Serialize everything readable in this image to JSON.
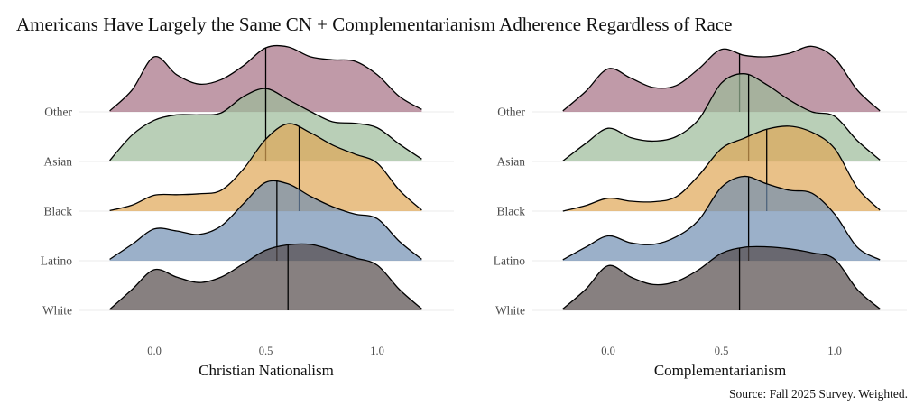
{
  "title": "Americans Have Largely the Same CN + Complementarianism Adherence Regardless of Race",
  "caption": "Source: Fall 2025 Survey. Weighted.",
  "chart_data": [
    {
      "type": "ridgeline",
      "xlabel": "Christian Nationalism",
      "xticks": [
        0.0,
        0.5,
        1.0
      ],
      "xtick_labels": [
        "0.0",
        "0.5",
        "1.0"
      ],
      "xlim": [
        -0.3,
        1.3
      ],
      "grid": "horizontal",
      "x": [
        -0.2,
        -0.1,
        0,
        0.1,
        0.2,
        0.3,
        0.4,
        0.5,
        0.6,
        0.7,
        0.8,
        0.9,
        1.0,
        1.1,
        1.2
      ],
      "series": [
        {
          "name": "Other",
          "median": 0.5,
          "density": [
            0.02,
            0.44,
            1.11,
            0.75,
            0.56,
            0.65,
            0.93,
            1.29,
            1.31,
            1.11,
            1.05,
            1.02,
            0.75,
            0.31,
            0.05
          ]
        },
        {
          "name": "Asian",
          "median": 0.5,
          "density": [
            0.02,
            0.53,
            0.83,
            0.94,
            0.94,
            0.98,
            1.31,
            1.47,
            1.25,
            1.01,
            0.8,
            0.77,
            0.68,
            0.35,
            0.05
          ]
        },
        {
          "name": "Black",
          "median": 0.65,
          "density": [
            0.01,
            0.12,
            0.32,
            0.33,
            0.35,
            0.42,
            0.85,
            1.45,
            1.76,
            1.58,
            1.33,
            1.15,
            0.97,
            0.42,
            0.02
          ]
        },
        {
          "name": "Latino",
          "median": 0.55,
          "density": [
            0.03,
            0.33,
            0.64,
            0.6,
            0.53,
            0.7,
            1.15,
            1.58,
            1.55,
            1.3,
            1.09,
            0.94,
            0.85,
            0.39,
            0.03
          ]
        },
        {
          "name": "White",
          "median": 0.6,
          "density": [
            0.02,
            0.42,
            0.82,
            0.67,
            0.56,
            0.67,
            0.94,
            1.21,
            1.32,
            1.33,
            1.21,
            1.06,
            0.91,
            0.42,
            0.03
          ]
        }
      ]
    },
    {
      "type": "ridgeline",
      "xlabel": "Complementarianism",
      "xticks": [
        0.0,
        0.5,
        1.0
      ],
      "xtick_labels": [
        "0.0",
        "0.5",
        "1.0"
      ],
      "xlim": [
        -0.3,
        1.3
      ],
      "grid": "horizontal",
      "x": [
        -0.2,
        -0.1,
        0,
        0.1,
        0.2,
        0.3,
        0.4,
        0.5,
        0.6,
        0.7,
        0.8,
        0.9,
        1.0,
        1.1,
        1.2
      ],
      "series": [
        {
          "name": "Other",
          "median": 0.58,
          "density": [
            0.02,
            0.41,
            0.87,
            0.68,
            0.49,
            0.53,
            0.87,
            1.26,
            1.14,
            1.11,
            1.18,
            1.32,
            1.08,
            0.44,
            0.02
          ]
        },
        {
          "name": "Asian",
          "median": 0.62,
          "density": [
            0.01,
            0.36,
            0.67,
            0.48,
            0.41,
            0.5,
            0.85,
            1.58,
            1.77,
            1.55,
            1.24,
            1.0,
            0.91,
            0.42,
            0.03
          ]
        },
        {
          "name": "Black",
          "median": 0.7,
          "density": [
            0.0,
            0.11,
            0.26,
            0.2,
            0.19,
            0.29,
            0.72,
            1.26,
            1.47,
            1.65,
            1.71,
            1.59,
            1.26,
            0.47,
            0.02
          ]
        },
        {
          "name": "Latino",
          "median": 0.62,
          "density": [
            0.02,
            0.27,
            0.5,
            0.36,
            0.33,
            0.48,
            0.82,
            1.48,
            1.7,
            1.55,
            1.42,
            1.36,
            0.94,
            0.27,
            0.02
          ]
        },
        {
          "name": "White",
          "median": 0.58,
          "density": [
            0.03,
            0.42,
            0.9,
            0.67,
            0.52,
            0.58,
            0.82,
            1.15,
            1.27,
            1.28,
            1.24,
            1.16,
            1.03,
            0.42,
            0.03
          ]
        }
      ]
    }
  ],
  "colors": {
    "Other": "#a56f83",
    "Asian": "#9bba98",
    "Black": "#e0a656",
    "Latino": "#708eb2",
    "White": "#544a4a"
  }
}
